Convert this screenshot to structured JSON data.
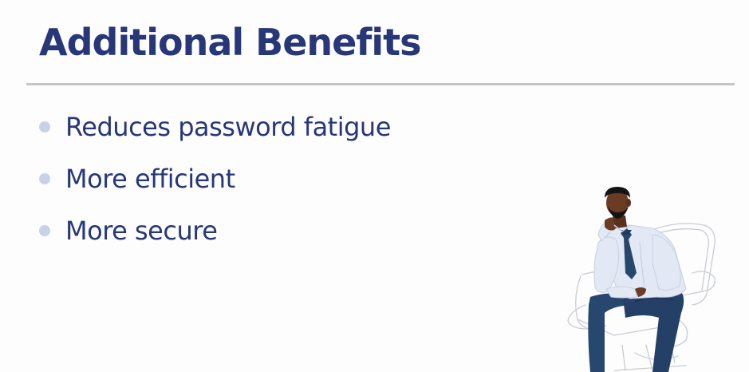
{
  "slide": {
    "title": "Additional Benefits",
    "bullets": [
      "Reduces password fatigue",
      "More efficient",
      "More secure"
    ]
  },
  "colors": {
    "title": "#273777",
    "bullet_text": "#273777",
    "bullet_dot": "#c8d2e6",
    "divider": "#c6c6c6",
    "background": "#fdfdfd",
    "shirt": "#e3e8f5",
    "pants": "#27476e",
    "skin": "#6b3b24",
    "hair": "#141414"
  },
  "illustration": {
    "subject": "thinking-man-in-chair-icon"
  }
}
